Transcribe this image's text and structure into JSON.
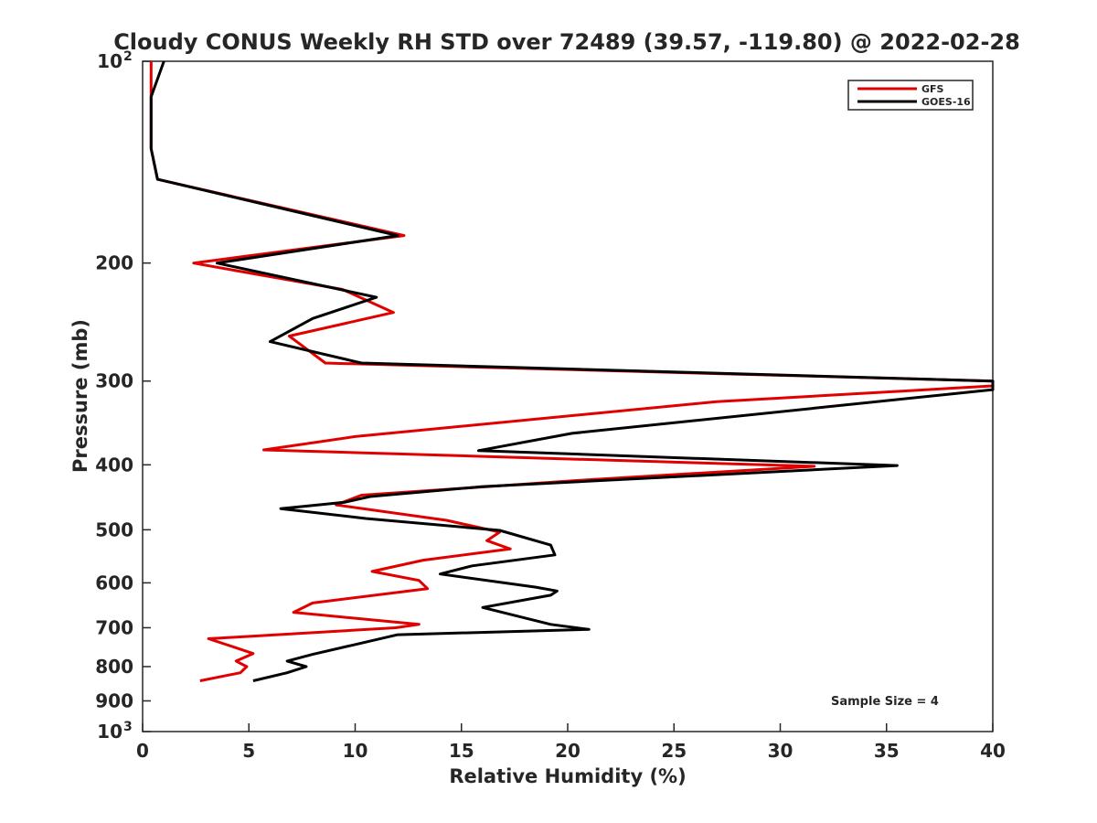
{
  "chart_data": {
    "type": "line",
    "title": "Cloudy CONUS Weekly RH STD over 72489 (39.57, -119.80) @ 2022-02-28",
    "xlabel": "Relative Humidity (%)",
    "ylabel": "Pressure (mb)",
    "xlim": [
      0,
      40
    ],
    "ylim": [
      100,
      1000
    ],
    "y_scale": "log",
    "y_reversed": true,
    "legend_position": "top-right",
    "x_ticks": [
      "0",
      "5",
      "10",
      "15",
      "20",
      "25",
      "30",
      "35",
      "40"
    ],
    "y_ticks": [
      {
        "value": 100,
        "label": "10",
        "sup": "2"
      },
      {
        "value": 200,
        "label": "200",
        "sup": ""
      },
      {
        "value": 300,
        "label": "300",
        "sup": ""
      },
      {
        "value": 400,
        "label": "400",
        "sup": ""
      },
      {
        "value": 500,
        "label": "500",
        "sup": ""
      },
      {
        "value": 600,
        "label": "600",
        "sup": ""
      },
      {
        "value": 700,
        "label": "700",
        "sup": ""
      },
      {
        "value": 800,
        "label": "800",
        "sup": ""
      },
      {
        "value": 900,
        "label": "900",
        "sup": ""
      },
      {
        "value": 1000,
        "label": "10",
        "sup": "3"
      }
    ],
    "annotation": "Sample Size = 4",
    "series": [
      {
        "name": "GFS",
        "color": "#e00000",
        "points": [
          [
            0.4,
            100
          ],
          [
            0.4,
            113
          ],
          [
            0.4,
            135
          ],
          [
            0.7,
            150
          ],
          [
            12.3,
            182
          ],
          [
            2.4,
            200
          ],
          [
            9.4,
            219
          ],
          [
            11.8,
            237
          ],
          [
            6.9,
            257
          ],
          [
            8.6,
            282
          ],
          [
            40,
            300
          ],
          [
            40,
            305
          ],
          [
            27,
            322
          ],
          [
            10,
            363
          ],
          [
            5.7,
            380
          ],
          [
            31.6,
            402
          ],
          [
            21,
            421
          ],
          [
            10.3,
            444
          ],
          [
            9.1,
            459
          ],
          [
            14.3,
            484
          ],
          [
            16.8,
            504
          ],
          [
            16.2,
            519
          ],
          [
            17.3,
            534
          ],
          [
            13.2,
            555
          ],
          [
            10.8,
            577
          ],
          [
            13,
            595
          ],
          [
            13.4,
            612
          ],
          [
            8,
            643
          ],
          [
            7.1,
            664
          ],
          [
            13,
            692
          ],
          [
            11.9,
            700
          ],
          [
            3.1,
            727
          ],
          [
            4.4,
            750
          ],
          [
            5.2,
            765
          ],
          [
            4.4,
            785
          ],
          [
            4.9,
            800
          ],
          [
            4.6,
            817
          ],
          [
            2.7,
            840
          ]
        ]
      },
      {
        "name": "GOES-16",
        "color": "#000000",
        "points": [
          [
            1,
            100
          ],
          [
            0.4,
            113
          ],
          [
            0.4,
            135
          ],
          [
            0.7,
            150
          ],
          [
            12,
            182
          ],
          [
            3.5,
            200
          ],
          [
            11,
            225
          ],
          [
            8,
            242
          ],
          [
            6,
            262
          ],
          [
            10.3,
            282
          ],
          [
            40,
            300
          ],
          [
            40,
            309
          ],
          [
            20.2,
            359
          ],
          [
            15.8,
            381
          ],
          [
            35.5,
            401
          ],
          [
            16,
            431
          ],
          [
            10.7,
            446
          ],
          [
            9.5,
            455
          ],
          [
            6.5,
            465
          ],
          [
            10.5,
            481
          ],
          [
            16.8,
            501
          ],
          [
            19.2,
            527
          ],
          [
            19.4,
            545
          ],
          [
            15.5,
            566
          ],
          [
            14,
            582
          ],
          [
            18.5,
            609
          ],
          [
            19.5,
            617
          ],
          [
            19.2,
            626
          ],
          [
            16,
            653
          ],
          [
            19.2,
            692
          ],
          [
            21,
            704
          ],
          [
            12,
            717
          ],
          [
            9.8,
            744
          ],
          [
            8,
            767
          ],
          [
            6.8,
            785
          ],
          [
            7.7,
            800
          ],
          [
            6.8,
            817
          ],
          [
            5.2,
            840
          ]
        ]
      }
    ]
  }
}
